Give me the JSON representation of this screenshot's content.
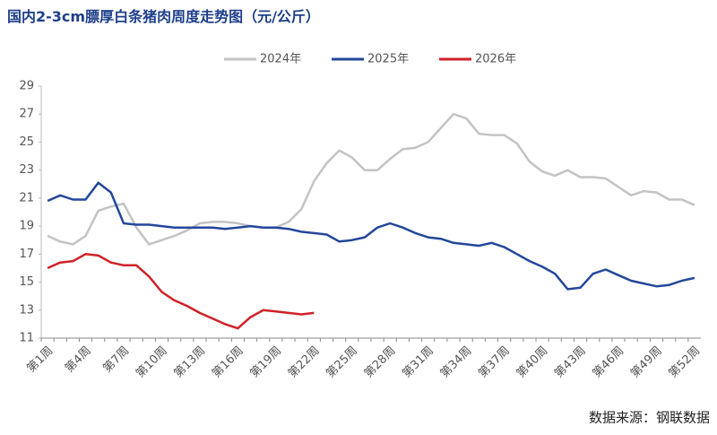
{
  "chart_data": {
    "type": "line",
    "title": "国内2-3cm膘厚白条猪肉周度走势图（元/公斤）",
    "source": "数据来源：钢联数据",
    "categories": [
      "第1周",
      null,
      null,
      "第4周",
      null,
      null,
      "第7周",
      null,
      null,
      "第10周",
      null,
      null,
      "第13周",
      null,
      null,
      "第16周",
      null,
      null,
      "第19周",
      null,
      null,
      "第22周",
      null,
      null,
      "第25周",
      null,
      null,
      "第28周",
      null,
      null,
      "第31周",
      null,
      null,
      "第34周",
      null,
      null,
      "第37周",
      null,
      null,
      "第40周",
      null,
      null,
      "第43周",
      null,
      null,
      "第46周",
      null,
      null,
      "第49周",
      null,
      null,
      "第52周"
    ],
    "series": [
      {
        "name": "2024年",
        "color": "#c3c3c3",
        "values": [
          18.3,
          17.9,
          17.7,
          18.3,
          20.1,
          20.4,
          20.6,
          18.9,
          17.7,
          18.0,
          18.3,
          18.7,
          19.2,
          19.3,
          19.3,
          19.2,
          19.0,
          18.9,
          18.9,
          19.3,
          20.2,
          22.2,
          23.5,
          24.4,
          23.9,
          23.0,
          23.0,
          23.8,
          24.5,
          24.6,
          25.0,
          26.0,
          27.0,
          26.7,
          25.6,
          25.5,
          25.5,
          24.9,
          23.6,
          22.9,
          22.6,
          23.0,
          22.5,
          22.5,
          22.4,
          21.8,
          21.2,
          21.5,
          21.4,
          20.9,
          20.9,
          20.5
        ]
      },
      {
        "name": "2025年",
        "color": "#22479a",
        "values": [
          20.8,
          21.2,
          20.9,
          20.9,
          22.1,
          21.4,
          19.2,
          19.1,
          19.1,
          19.0,
          18.9,
          18.9,
          18.9,
          18.9,
          18.8,
          18.9,
          19.0,
          18.9,
          18.9,
          18.8,
          18.6,
          18.5,
          18.4,
          17.9,
          18.0,
          18.2,
          18.9,
          19.2,
          18.9,
          18.5,
          18.2,
          18.1,
          17.8,
          17.7,
          17.6,
          17.8,
          17.5,
          17.0,
          16.5,
          16.1,
          15.6,
          14.5,
          14.6,
          15.6,
          15.9,
          15.5,
          15.1,
          14.9,
          14.7,
          14.8,
          15.1,
          15.3
        ]
      },
      {
        "name": "2026年",
        "color": "#d02127",
        "values": [
          16.0,
          16.4,
          16.5,
          17.0,
          16.9,
          16.4,
          16.2,
          16.2,
          15.4,
          14.3,
          13.7,
          13.3,
          12.8,
          12.4,
          12.0,
          11.7,
          12.5,
          13.0,
          12.9,
          12.8,
          12.7,
          12.8,
          null,
          null,
          null,
          null,
          null,
          null,
          null,
          null,
          null,
          null,
          null,
          null,
          null,
          null,
          null,
          null,
          null,
          null,
          null,
          null,
          null,
          null,
          null,
          null,
          null,
          null,
          null,
          null,
          null,
          null
        ]
      }
    ],
    "ylim": [
      11,
      29
    ],
    "yticks": [
      11,
      13,
      15,
      17,
      19,
      21,
      23,
      25,
      27,
      29
    ],
    "grid": false,
    "legend": "top"
  }
}
